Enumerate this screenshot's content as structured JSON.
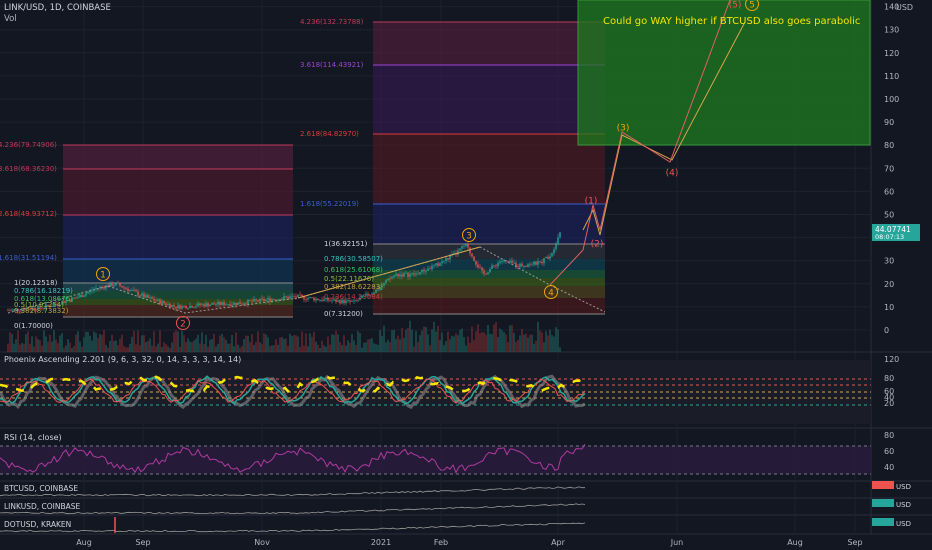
{
  "header": {
    "symbol": "LINK/USD, 1D, COINBASE",
    "vol_label": "Vol",
    "currency": "USD"
  },
  "annotation_text": "Could go WAY higher if BTCUSD also goes parabolic",
  "price_badge": {
    "price": "44.07741",
    "countdown": "08:07:13"
  },
  "colors": {
    "background": "#131722",
    "up": "#26a69a",
    "down": "#ef5350",
    "annotation": "#f7e600",
    "target_box": "#1e7a1e",
    "wave_green": "#f0a500",
    "wave_red": "#ef5350"
  },
  "chart_data": [
    {
      "type": "line",
      "title": "LINK/USD, 1D, COINBASE",
      "x_ticks": [
        "Aug",
        "Sep",
        "Nov",
        "2021",
        "Feb",
        "Apr",
        "Jun",
        "Aug",
        "Sep"
      ],
      "y_ticks": [
        0,
        10,
        20,
        30,
        40,
        50,
        60,
        70,
        80,
        90,
        100,
        110,
        120,
        130,
        140
      ],
      "ylim": [
        -10,
        145
      ],
      "series": [
        {
          "x": [
            "2020-07-01",
            "2020-07-20",
            "2020-08-05",
            "2020-08-15",
            "2020-08-25",
            "2020-09-10",
            "2020-09-25",
            "2020-10-10",
            "2020-10-25",
            "2020-11-10",
            "2020-11-25",
            "2020-12-10",
            "2020-12-25",
            "2021-01-05",
            "2021-01-15",
            "2021-01-25",
            "2021-02-05",
            "2021-02-15",
            "2021-02-20",
            "2021-03-01",
            "2021-03-10",
            "2021-03-20",
            "2021-03-30",
            "2021-04-05",
            "2021-04-10"
          ],
          "values": [
            8.5,
            10,
            14,
            18,
            20,
            14,
            10,
            11,
            11.5,
            13,
            14.5,
            13,
            12,
            17,
            24,
            24,
            28,
            33,
            36.9,
            24,
            30,
            28,
            29,
            33,
            44
          ]
        }
      ],
      "fib_retracement_1": [
        {
          "label": "1(20.12518)"
        },
        {
          "label": "0.786(16.18219)"
        },
        {
          "label": "0.618(13.08676)"
        },
        {
          "label": "0.5(10.91254)"
        },
        {
          "label": "0.382(8.73832)"
        },
        {
          "label": "0(1.70000)"
        }
      ],
      "fib_extension_1": [
        {
          "label": "4.236(79.74906)"
        },
        {
          "label": "3.618(68.36230)"
        },
        {
          "label": "2.618(49.93712)"
        },
        {
          "label": "1.618(31.51194)"
        }
      ],
      "fib_retracement_2": [
        {
          "label": "1(36.92151)"
        },
        {
          "label": "0.786(30.58507)"
        },
        {
          "label": "0.618(25.61068)"
        },
        {
          "label": "0.5(22.11676)"
        },
        {
          "label": "0.382(18.62283)"
        },
        {
          "label": "0.236(14.29084)"
        },
        {
          "label": "0(7.31200)"
        }
      ],
      "fib_extension_2": [
        {
          "label": "4.236(132.73788)"
        },
        {
          "label": "3.618(114.43921)"
        },
        {
          "label": "2.618(84.82970)"
        },
        {
          "label": "1.618(55.22019)"
        }
      ],
      "wave_labels": [
        "1",
        "2",
        "3",
        "4",
        "5",
        "(1)",
        "(2)",
        "(3)",
        "(4)",
        "(5)"
      ]
    },
    {
      "type": "line",
      "title": "Phoenix Ascending 2.201 (9, 6, 3, 32, 0, 14, 3, 3, 3, 14, 14)",
      "y_ticks": [
        120,
        80,
        60,
        40,
        20
      ]
    },
    {
      "type": "line",
      "title": "RSI (14, close)",
      "y_ticks": [
        80,
        60,
        40
      ]
    },
    {
      "type": "line",
      "title": "BTCUSD, COINBASE"
    },
    {
      "type": "line",
      "title": "LINKUSD, COINBASE"
    },
    {
      "type": "line",
      "title": "DOTUSD, KRAKEN"
    }
  ]
}
